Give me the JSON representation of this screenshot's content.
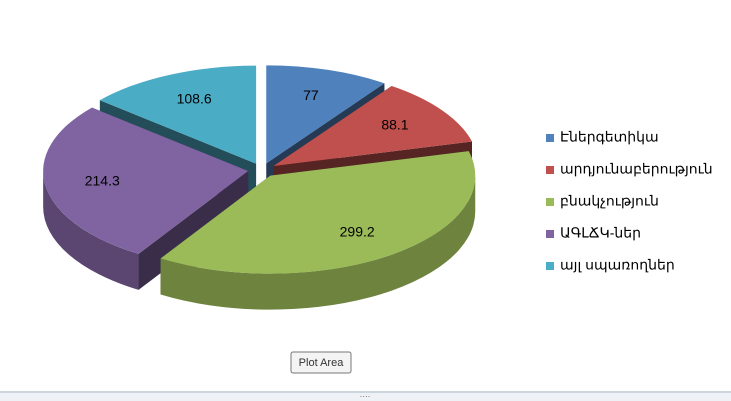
{
  "chart_data": {
    "type": "pie",
    "categories": [
      "Էներգետիկա",
      "արդյունաբերություն",
      "բնակչություն",
      "ԱԳԼՃԿ-ներ",
      "այլ սպառողներ"
    ],
    "values": [
      77,
      88.1,
      299.2,
      214.3,
      108.6
    ],
    "colors": [
      "#4f81bd",
      "#c0504d",
      "#9bbb59",
      "#8064a2",
      "#4bacc6"
    ],
    "legend": "right"
  },
  "tooltip": "Plot Area"
}
